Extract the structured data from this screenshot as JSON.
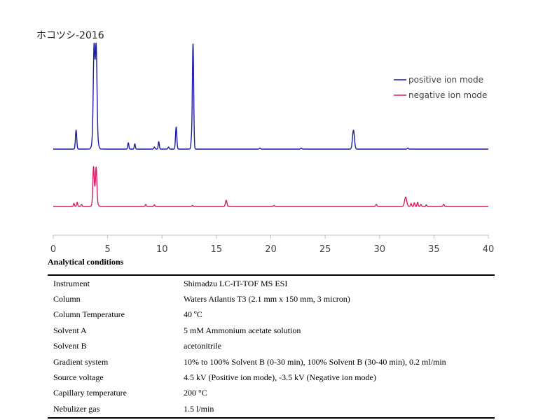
{
  "title": "ホコツシ-2016",
  "chart_data": {
    "type": "line",
    "xlim": [
      0,
      40
    ],
    "x_ticks": [
      0,
      5,
      10,
      15,
      20,
      25,
      30,
      35,
      40
    ],
    "legend": {
      "position": "top-right"
    },
    "series": [
      {
        "name": "positive ion mode",
        "color": "#1a1aa8",
        "peaks": [
          {
            "rt": 2.1,
            "h": 0.18,
            "w": 0.06
          },
          {
            "rt": 3.75,
            "h": 0.7,
            "w": 0.07
          },
          {
            "rt": 3.95,
            "h": 0.7,
            "w": 0.07
          },
          {
            "rt": 3.85,
            "h": 0.35,
            "w": 0.16
          },
          {
            "rt": 6.9,
            "h": 0.06,
            "w": 0.05
          },
          {
            "rt": 7.5,
            "h": 0.05,
            "w": 0.05
          },
          {
            "rt": 9.3,
            "h": 0.02,
            "w": 0.05
          },
          {
            "rt": 9.7,
            "h": 0.07,
            "w": 0.05
          },
          {
            "rt": 10.6,
            "h": 0.02,
            "w": 0.05
          },
          {
            "rt": 11.3,
            "h": 0.21,
            "w": 0.06
          },
          {
            "rt": 12.7,
            "h": 0.08,
            "w": 0.05
          },
          {
            "rt": 12.85,
            "h": 1.0,
            "w": 0.06
          },
          {
            "rt": 19.0,
            "h": 0.01,
            "w": 0.05
          },
          {
            "rt": 22.8,
            "h": 0.01,
            "w": 0.05
          },
          {
            "rt": 27.6,
            "h": 0.18,
            "w": 0.09
          },
          {
            "rt": 32.6,
            "h": 0.01,
            "w": 0.05
          }
        ]
      },
      {
        "name": "negative ion mode",
        "color": "#d81b60",
        "peaks": [
          {
            "rt": 1.9,
            "h": 0.03,
            "w": 0.05
          },
          {
            "rt": 2.2,
            "h": 0.04,
            "w": 0.05
          },
          {
            "rt": 2.6,
            "h": 0.02,
            "w": 0.05
          },
          {
            "rt": 3.7,
            "h": 0.3,
            "w": 0.06
          },
          {
            "rt": 3.95,
            "h": 0.27,
            "w": 0.06
          },
          {
            "rt": 3.85,
            "h": 0.13,
            "w": 0.15
          },
          {
            "rt": 8.5,
            "h": 0.02,
            "w": 0.05
          },
          {
            "rt": 9.3,
            "h": 0.015,
            "w": 0.05
          },
          {
            "rt": 12.8,
            "h": 0.01,
            "w": 0.05
          },
          {
            "rt": 15.9,
            "h": 0.06,
            "w": 0.07
          },
          {
            "rt": 20.3,
            "h": 0.01,
            "w": 0.05
          },
          {
            "rt": 29.7,
            "h": 0.02,
            "w": 0.06
          },
          {
            "rt": 32.4,
            "h": 0.09,
            "w": 0.1
          },
          {
            "rt": 32.9,
            "h": 0.03,
            "w": 0.05
          },
          {
            "rt": 33.2,
            "h": 0.035,
            "w": 0.05
          },
          {
            "rt": 33.5,
            "h": 0.04,
            "w": 0.05
          },
          {
            "rt": 33.8,
            "h": 0.02,
            "w": 0.05
          },
          {
            "rt": 34.3,
            "h": 0.015,
            "w": 0.05
          },
          {
            "rt": 35.9,
            "h": 0.02,
            "w": 0.06
          }
        ]
      }
    ]
  },
  "conditions": {
    "title": "Analytical conditions",
    "rows": [
      {
        "label": "Instrument",
        "value": "Shimadzu LC-IT-TOF MS ESI"
      },
      {
        "label": "Column",
        "value": "Waters Atlantis T3 (2.1 mm x 150 mm, 3 micron)"
      },
      {
        "label": "Column Temperature",
        "value": "40 ºC"
      },
      {
        "label": "Solvent A",
        "value": "5 mM Ammonium acetate solution"
      },
      {
        "label": "Solvent B",
        "value": "acetonitrile"
      },
      {
        "label": "Gradient system",
        "value": "10% to 100% Solvent B (0-30 min), 100% Solvent B (30-40 min), 0.2 ml/min"
      },
      {
        "label": "Source voltage",
        "value": "4.5 kV (Positive ion mode), -3.5 kV (Negative ion mode)"
      },
      {
        "label": "Capillary temperature",
        "value": "200 °C"
      },
      {
        "label": "Nebulizer gas",
        "value": "1.5 l/min"
      }
    ]
  }
}
